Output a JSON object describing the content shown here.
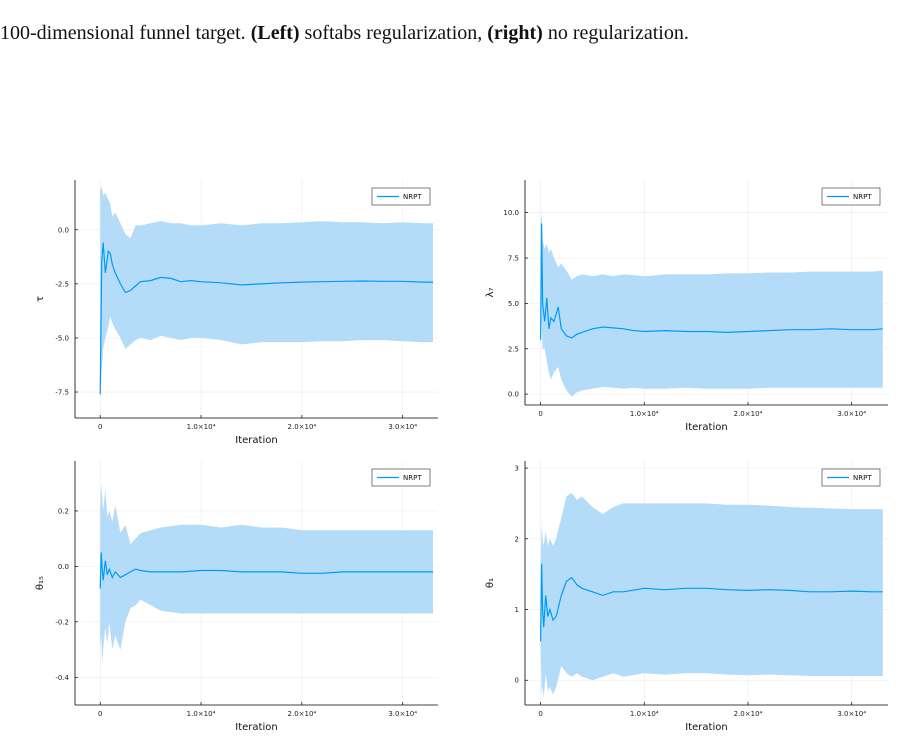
{
  "caption": {
    "lead": "100-dimensional funnel target.",
    "left_label": "(Left)",
    "left_text": "softabs regularization,",
    "right_label": "(right)",
    "right_text": "no regularization."
  },
  "series_color": "#009af9",
  "band_color": "#b4dcf8",
  "chart_data": [
    {
      "type": "area",
      "title": "",
      "xlabel": "Iteration",
      "ylabel": "τ",
      "xlim": [
        -2500,
        33500
      ],
      "ylim": [
        -8.7,
        2.3
      ],
      "xticks": [
        0,
        10000,
        20000,
        30000
      ],
      "xtick_labels": [
        "0",
        "1.0×10⁴",
        "2.0×10⁴",
        "3.0×10⁴"
      ],
      "yticks": [
        -7.5,
        -5.0,
        -2.5,
        0.0
      ],
      "ytick_labels": [
        "-7.5",
        "-5.0",
        "-2.5",
        "0.0"
      ],
      "grid": true,
      "legend": "top-right",
      "series": [
        {
          "name": "NRPT",
          "x": [
            0,
            150,
            300,
            500,
            800,
            1000,
            1200,
            1500,
            2000,
            2500,
            3000,
            3500,
            4000,
            5000,
            6000,
            7000,
            8000,
            9000,
            10000,
            12000,
            14000,
            16000,
            18000,
            20000,
            22000,
            24000,
            26000,
            28000,
            30000,
            32000,
            33000
          ],
          "y": [
            -7.6,
            -1.5,
            -0.6,
            -2.0,
            -1.0,
            -1.1,
            -1.6,
            -2.0,
            -2.5,
            -2.9,
            -2.8,
            -2.6,
            -2.4,
            -2.35,
            -2.2,
            -2.25,
            -2.4,
            -2.35,
            -2.4,
            -2.45,
            -2.55,
            -2.5,
            -2.45,
            -2.42,
            -2.4,
            -2.38,
            -2.37,
            -2.38,
            -2.38,
            -2.42,
            -2.42
          ],
          "upper": [
            1.8,
            2.0,
            1.6,
            1.7,
            1.4,
            1.2,
            0.6,
            0.8,
            0.3,
            -0.2,
            -0.4,
            0.2,
            0.2,
            0.3,
            0.4,
            0.3,
            0.3,
            0.2,
            0.2,
            0.3,
            0.2,
            0.3,
            0.3,
            0.35,
            0.4,
            0.35,
            0.35,
            0.3,
            0.35,
            0.3,
            0.3
          ],
          "lower": [
            -7.6,
            -6.5,
            -5.5,
            -5.0,
            -4.5,
            -4.0,
            -4.3,
            -4.6,
            -5.0,
            -5.5,
            -5.3,
            -5.1,
            -5.0,
            -5.1,
            -4.9,
            -5.0,
            -5.1,
            -5.0,
            -5.0,
            -5.1,
            -5.3,
            -5.2,
            -5.2,
            -5.2,
            -5.15,
            -5.15,
            -5.1,
            -5.1,
            -5.15,
            -5.2,
            -5.2
          ]
        }
      ]
    },
    {
      "type": "area",
      "title": "",
      "xlabel": "Iteration",
      "ylabel": "λ₇",
      "xlim": [
        -1500,
        33500
      ],
      "ylim": [
        -0.6,
        11.8
      ],
      "xticks": [
        0,
        10000,
        20000,
        30000
      ],
      "xtick_labels": [
        "0",
        "1.0×10⁴",
        "2.0×10⁴",
        "3.0×10⁴"
      ],
      "yticks": [
        0.0,
        2.5,
        5.0,
        7.5,
        10.0
      ],
      "ytick_labels": [
        "0.0",
        "2.5",
        "5.0",
        "7.5",
        "10.0"
      ],
      "grid": true,
      "legend": "top-right",
      "series": [
        {
          "name": "NRPT",
          "x": [
            0,
            100,
            200,
            400,
            600,
            800,
            1000,
            1300,
            1700,
            2000,
            2500,
            3000,
            3500,
            4000,
            5000,
            6000,
            7000,
            8000,
            9000,
            10000,
            12000,
            14000,
            16000,
            18000,
            20000,
            22000,
            24000,
            26000,
            28000,
            30000,
            32000,
            33000
          ],
          "y": [
            3.0,
            9.4,
            5.0,
            4.0,
            5.3,
            3.6,
            4.2,
            4.0,
            4.8,
            3.6,
            3.2,
            3.1,
            3.3,
            3.4,
            3.6,
            3.7,
            3.65,
            3.6,
            3.5,
            3.45,
            3.5,
            3.45,
            3.45,
            3.4,
            3.45,
            3.5,
            3.55,
            3.55,
            3.6,
            3.55,
            3.55,
            3.6
          ],
          "upper": [
            9.4,
            10.0,
            8.5,
            8.0,
            8.3,
            7.8,
            8.0,
            7.5,
            7.0,
            7.2,
            6.8,
            6.3,
            6.5,
            6.6,
            6.5,
            6.6,
            6.5,
            6.6,
            6.55,
            6.5,
            6.6,
            6.6,
            6.6,
            6.65,
            6.65,
            6.7,
            6.7,
            6.75,
            6.75,
            6.75,
            6.75,
            6.8
          ],
          "lower": [
            3.0,
            4.0,
            2.5,
            2.5,
            1.8,
            1.2,
            0.8,
            1.2,
            1.5,
            0.8,
            0.2,
            -0.15,
            0.1,
            0.2,
            0.3,
            0.4,
            0.35,
            0.3,
            0.35,
            0.3,
            0.3,
            0.35,
            0.3,
            0.3,
            0.3,
            0.35,
            0.35,
            0.35,
            0.35,
            0.35,
            0.35,
            0.35
          ]
        }
      ]
    },
    {
      "type": "area",
      "title": "",
      "xlabel": "Iteration",
      "ylabel": "θ₁₅",
      "xlim": [
        -2500,
        33500
      ],
      "ylim": [
        -0.5,
        0.38
      ],
      "xticks": [
        0,
        10000,
        20000,
        30000
      ],
      "xtick_labels": [
        "0",
        "1.0×10⁴",
        "2.0×10⁴",
        "3.0×10⁴"
      ],
      "yticks": [
        -0.4,
        -0.2,
        0.0,
        0.2
      ],
      "ytick_labels": [
        "-0.4",
        "-0.2",
        "0.0",
        "0.2"
      ],
      "grid": true,
      "legend": "top-right",
      "series": [
        {
          "name": "NRPT",
          "x": [
            0,
            100,
            200,
            300,
            500,
            700,
            900,
            1200,
            1500,
            2000,
            2500,
            3000,
            3500,
            4000,
            5000,
            6000,
            8000,
            10000,
            12000,
            14000,
            16000,
            18000,
            20000,
            22000,
            24000,
            26000,
            28000,
            30000,
            32000,
            33000
          ],
          "y": [
            -0.08,
            0.05,
            -0.01,
            -0.05,
            0.02,
            -0.03,
            -0.01,
            -0.04,
            -0.02,
            -0.04,
            -0.03,
            -0.02,
            -0.01,
            -0.015,
            -0.02,
            -0.02,
            -0.02,
            -0.015,
            -0.015,
            -0.02,
            -0.02,
            -0.02,
            -0.025,
            -0.025,
            -0.02,
            -0.02,
            -0.02,
            -0.02,
            -0.02,
            -0.02
          ],
          "upper": [
            0.2,
            0.3,
            0.25,
            0.2,
            0.28,
            0.18,
            0.2,
            0.16,
            0.22,
            0.12,
            0.15,
            0.08,
            0.1,
            0.12,
            0.13,
            0.14,
            0.15,
            0.15,
            0.14,
            0.15,
            0.14,
            0.14,
            0.13,
            0.13,
            0.13,
            0.13,
            0.13,
            0.13,
            0.13,
            0.13
          ],
          "lower": [
            -0.3,
            -0.25,
            -0.35,
            -0.3,
            -0.22,
            -0.28,
            -0.2,
            -0.3,
            -0.25,
            -0.3,
            -0.2,
            -0.15,
            -0.14,
            -0.12,
            -0.14,
            -0.16,
            -0.17,
            -0.17,
            -0.17,
            -0.17,
            -0.17,
            -0.17,
            -0.17,
            -0.17,
            -0.17,
            -0.17,
            -0.17,
            -0.17,
            -0.17,
            -0.17
          ]
        }
      ]
    },
    {
      "type": "area",
      "title": "",
      "xlabel": "Iteration",
      "ylabel": "θ₁",
      "xlim": [
        -1500,
        33500
      ],
      "ylim": [
        -0.35,
        3.1
      ],
      "xticks": [
        0,
        10000,
        20000,
        30000
      ],
      "xtick_labels": [
        "0",
        "1.0×10⁴",
        "2.0×10⁴",
        "3.0×10⁴"
      ],
      "yticks": [
        0,
        1,
        2,
        3
      ],
      "ytick_labels": [
        "0",
        "1",
        "2",
        "3"
      ],
      "grid": true,
      "legend": "top-right",
      "series": [
        {
          "name": "NRPT",
          "x": [
            0,
            100,
            200,
            300,
            500,
            700,
            900,
            1200,
            1500,
            2000,
            2500,
            3000,
            3500,
            4000,
            5000,
            6000,
            7000,
            8000,
            10000,
            12000,
            14000,
            16000,
            18000,
            20000,
            22000,
            24000,
            26000,
            28000,
            30000,
            32000,
            33000
          ],
          "y": [
            0.55,
            1.65,
            1.0,
            0.75,
            1.2,
            0.9,
            1.0,
            0.85,
            0.9,
            1.2,
            1.4,
            1.45,
            1.35,
            1.3,
            1.25,
            1.2,
            1.25,
            1.25,
            1.3,
            1.28,
            1.3,
            1.3,
            1.28,
            1.27,
            1.28,
            1.27,
            1.25,
            1.25,
            1.26,
            1.25,
            1.25
          ],
          "upper": [
            1.7,
            2.2,
            2.0,
            1.9,
            2.1,
            1.9,
            2.0,
            1.9,
            2.0,
            2.3,
            2.6,
            2.65,
            2.55,
            2.6,
            2.45,
            2.35,
            2.45,
            2.5,
            2.5,
            2.5,
            2.5,
            2.5,
            2.48,
            2.48,
            2.47,
            2.45,
            2.44,
            2.43,
            2.42,
            2.42,
            2.42
          ],
          "lower": [
            0.5,
            -0.2,
            -0.1,
            -0.25,
            0.1,
            -0.15,
            -0.1,
            -0.2,
            -0.1,
            0.2,
            0.1,
            0.05,
            0.1,
            0.05,
            0.0,
            0.05,
            0.1,
            0.05,
            0.1,
            0.08,
            0.1,
            0.1,
            0.08,
            0.07,
            0.08,
            0.07,
            0.06,
            0.06,
            0.06,
            0.06,
            0.06
          ]
        }
      ]
    }
  ]
}
